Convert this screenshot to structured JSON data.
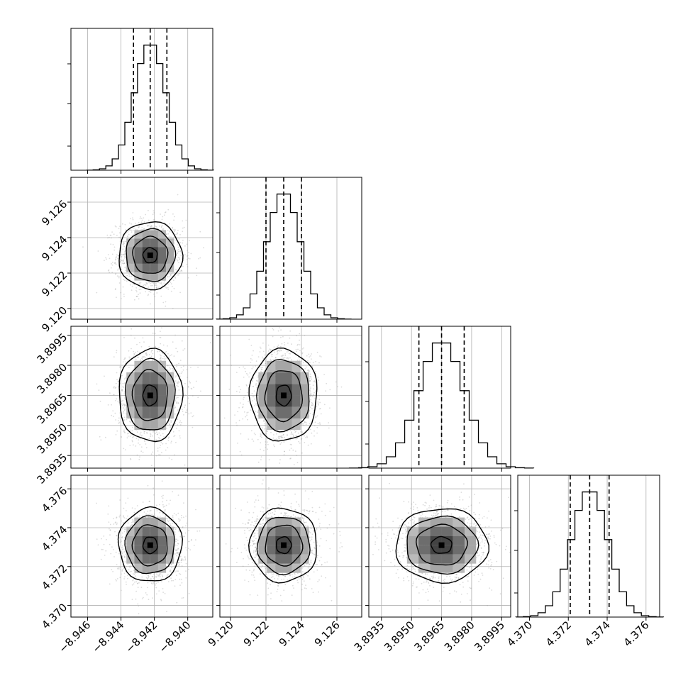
{
  "chart_data": {
    "type": "corner",
    "parameters": [
      {
        "range": [
          -8.947,
          -8.9385
        ],
        "ticks": [
          -8.946,
          -8.944,
          -8.942,
          -8.94
        ],
        "tick_labels": [
          "−8.946",
          "−8.944",
          "−8.942",
          "−8.940"
        ],
        "mean": -8.94225,
        "sd": 0.00095,
        "quantiles": [
          -8.94325,
          -8.94225,
          -8.94125
        ]
      },
      {
        "range": [
          9.1194,
          9.1274
        ],
        "ticks": [
          9.12,
          9.122,
          9.124,
          9.126
        ],
        "tick_labels": [
          "9.120",
          "9.122",
          "9.124",
          "9.126"
        ],
        "mean": 9.123,
        "sd": 0.00095,
        "quantiles": [
          9.122,
          9.123,
          9.124
        ]
      },
      {
        "range": [
          3.89287,
          3.89995
        ],
        "ticks": [
          3.8935,
          3.895,
          3.8965,
          3.898,
          3.8995
        ],
        "tick_labels": [
          "3.8935",
          "3.8950",
          "3.8965",
          "3.8980",
          "3.8995"
        ],
        "mean": 3.8965,
        "sd": 0.00115,
        "quantiles": [
          3.89537,
          3.8965,
          3.89763
        ]
      },
      {
        "range": [
          4.3694,
          4.3767
        ],
        "ticks": [
          4.37,
          4.372,
          4.374,
          4.376
        ],
        "tick_labels": [
          "4.370",
          "4.372",
          "4.374",
          "4.376"
        ],
        "mean": 4.3731,
        "sd": 0.00095,
        "quantiles": [
          4.3721,
          4.3731,
          4.3741
        ]
      }
    ],
    "histogram_bins": 20,
    "quantile_lines": "dashed",
    "contour_levels": 4,
    "grid": true,
    "title": "",
    "legend": "none"
  }
}
